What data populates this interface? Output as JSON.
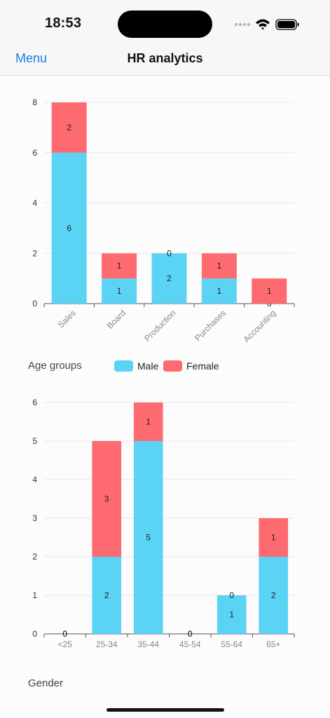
{
  "status_bar": {
    "time": "18:53"
  },
  "nav": {
    "menu_label": "Menu",
    "title": "HR analytics"
  },
  "legend": {
    "title": "Age groups",
    "items": [
      {
        "label": "Male",
        "color": "#5bd3f5"
      },
      {
        "label": "Female",
        "color": "#fd6a70"
      }
    ]
  },
  "section_gender": {
    "title": "Gender"
  },
  "chart_data": [
    {
      "type": "bar",
      "stacked": true,
      "categories": [
        "Sales",
        "Board",
        "Production",
        "Purchases",
        "Accounting"
      ],
      "series": [
        {
          "name": "Male",
          "color": "#5bd3f5",
          "values": [
            6,
            1,
            2,
            1,
            0
          ]
        },
        {
          "name": "Female",
          "color": "#fd6a70",
          "values": [
            2,
            1,
            0,
            1,
            1
          ]
        }
      ],
      "yticks": [
        0,
        2,
        4,
        6,
        8
      ],
      "ylim": [
        0,
        8
      ],
      "grid": true,
      "rotated_labels": true
    },
    {
      "type": "bar",
      "stacked": true,
      "categories": [
        "<25",
        "25-34",
        "35-44",
        "45-54",
        "55-64",
        "65+"
      ],
      "series": [
        {
          "name": "Male",
          "color": "#5bd3f5",
          "values": [
            0,
            2,
            5,
            0,
            1,
            2
          ]
        },
        {
          "name": "Female",
          "color": "#fd6a70",
          "values": [
            0,
            3,
            1,
            0,
            0,
            1
          ]
        }
      ],
      "yticks": [
        0,
        1,
        2,
        3,
        4,
        5,
        6
      ],
      "ylim": [
        0,
        6
      ],
      "grid": true,
      "rotated_labels": false
    }
  ]
}
